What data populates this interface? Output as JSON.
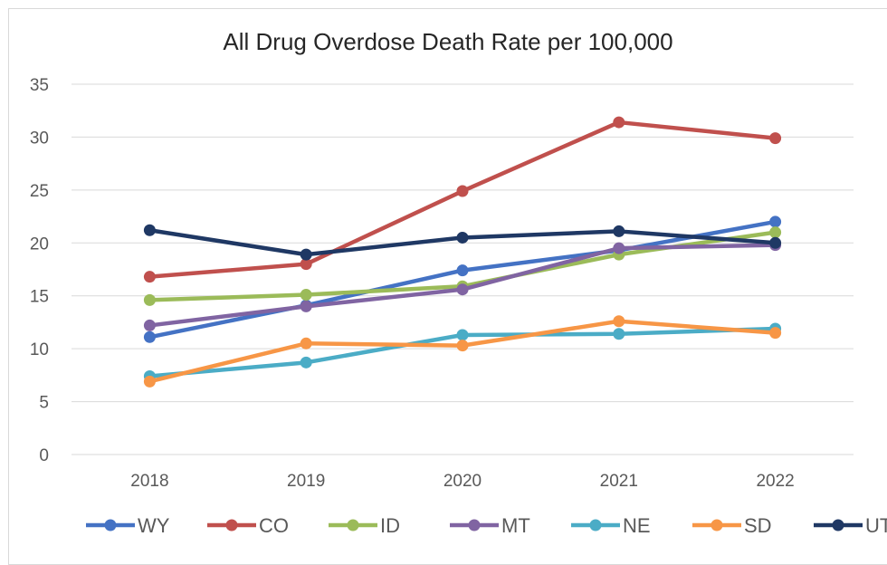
{
  "chart_data": {
    "type": "line",
    "title": "All Drug Overdose Death Rate per 100,000",
    "xlabel": "",
    "ylabel": "",
    "categories": [
      "2018",
      "2019",
      "2020",
      "2021",
      "2022"
    ],
    "y_ticks": [
      "0",
      "5",
      "10",
      "15",
      "20",
      "25",
      "30",
      "35"
    ],
    "ylim": [
      0,
      35
    ],
    "grid": true,
    "legend_position": "bottom",
    "series": [
      {
        "name": "WY",
        "color": "#4472c4",
        "values": [
          11.1,
          14.1,
          17.4,
          19.3,
          22.0
        ]
      },
      {
        "name": "CO",
        "color": "#c0504d",
        "values": [
          16.8,
          18.0,
          24.9,
          31.4,
          29.9
        ]
      },
      {
        "name": "ID",
        "color": "#9bbb59",
        "values": [
          14.6,
          15.1,
          15.9,
          18.9,
          21.0
        ]
      },
      {
        "name": "MT",
        "color": "#8064a2",
        "values": [
          12.2,
          14.0,
          15.6,
          19.5,
          19.8
        ]
      },
      {
        "name": "NE",
        "color": "#4bacc6",
        "values": [
          7.4,
          8.7,
          11.3,
          11.4,
          11.9
        ]
      },
      {
        "name": "SD",
        "color": "#f79646",
        "values": [
          6.9,
          10.5,
          10.3,
          12.6,
          11.5
        ]
      },
      {
        "name": "UT",
        "color": "#1f3864",
        "values": [
          21.2,
          18.9,
          20.5,
          21.1,
          20.0
        ]
      }
    ]
  }
}
